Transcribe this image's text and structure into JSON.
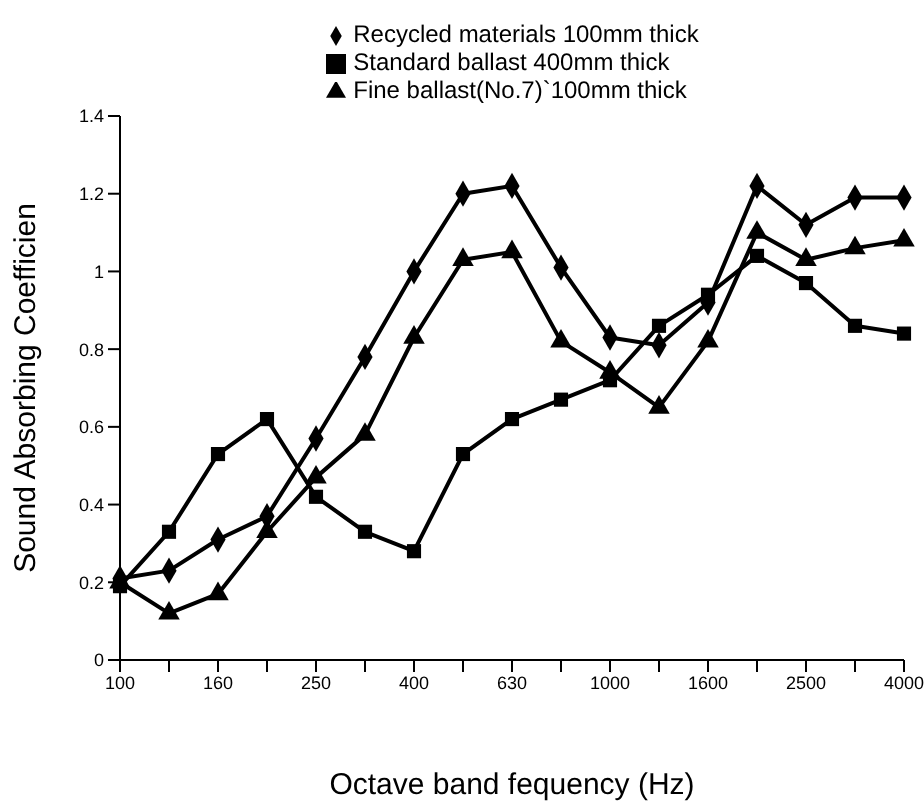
{
  "chart_data": {
    "type": "line",
    "xlabel": "Octave band fequency (Hz)",
    "ylabel": "Sound Absorbing Coefficien",
    "categories": [
      "100",
      null,
      "160",
      null,
      "250",
      null,
      "400",
      null,
      "630",
      null,
      "1000",
      null,
      "1600",
      null,
      "2500",
      null,
      "4000"
    ],
    "series": [
      {
        "name": "Recycled materials 100mm thick",
        "color": "#000000",
        "marker": "diamond",
        "values": [
          0.21,
          0.23,
          0.31,
          0.37,
          0.57,
          0.78,
          1.0,
          1.2,
          1.22,
          1.01,
          0.83,
          0.81,
          0.92,
          1.22,
          1.12,
          1.19,
          1.19
        ]
      },
      {
        "name": "Standard ballast 400mm thick",
        "color": "#000000",
        "marker": "square",
        "values": [
          0.19,
          0.33,
          0.53,
          0.62,
          0.42,
          0.33,
          0.28,
          0.53,
          0.62,
          0.67,
          0.72,
          0.86,
          0.94,
          1.04,
          0.97,
          0.86,
          0.84
        ]
      },
      {
        "name": "Fine ballast(No.7)`100mm thick",
        "color": "#000000",
        "marker": "triangle",
        "values": [
          0.2,
          0.12,
          0.17,
          0.33,
          0.47,
          0.58,
          0.83,
          1.03,
          1.05,
          0.82,
          0.74,
          0.65,
          0.82,
          1.1,
          1.03,
          1.06,
          1.08
        ]
      }
    ],
    "ylim": [
      0,
      1.4
    ],
    "yticks": [
      0,
      0.2,
      0.4,
      0.6,
      0.8,
      1,
      1.2,
      1.4
    ],
    "grid": false,
    "legend": "top",
    "line_style": "solid"
  }
}
